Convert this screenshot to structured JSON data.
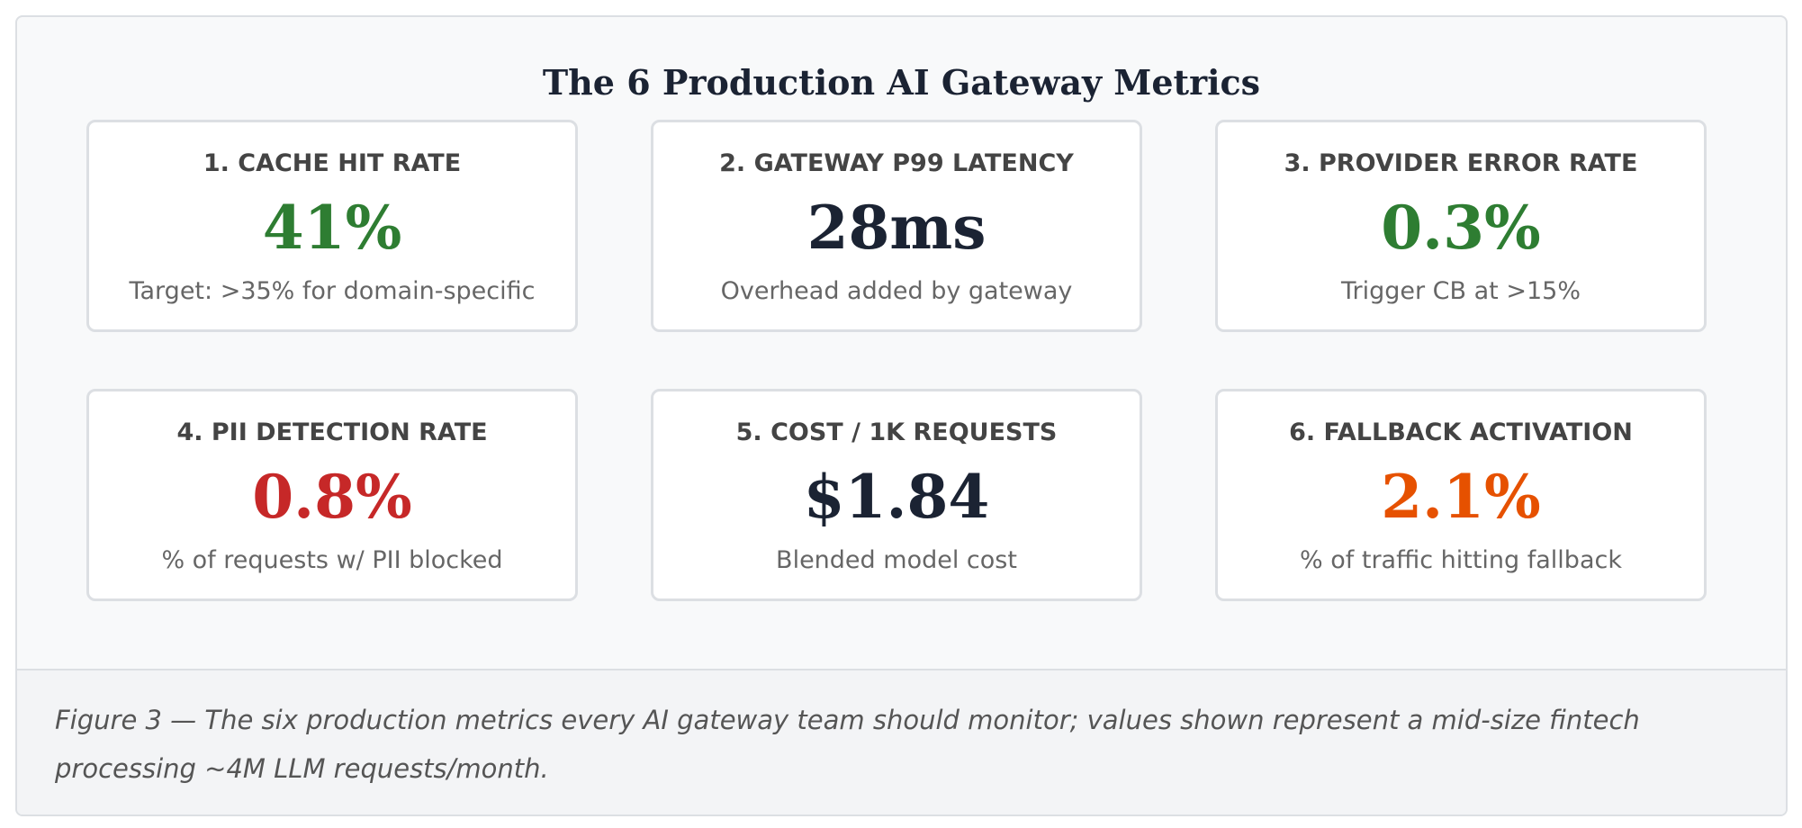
{
  "header": {
    "title": "The 6 Production AI Gateway Metrics"
  },
  "cards": [
    {
      "label": "1. CACHE HIT RATE",
      "value": "41%",
      "note": "Target: >35% for domain-specific",
      "color": "#2e7d32"
    },
    {
      "label": "2. GATEWAY P99 LATENCY",
      "value": "28ms",
      "note": "Overhead added by gateway",
      "color": "#1b2333"
    },
    {
      "label": "3. PROVIDER ERROR RATE",
      "value": "0.3%",
      "note": "Trigger CB at >15%",
      "color": "#2e7d32"
    },
    {
      "label": "4. PII DETECTION RATE",
      "value": "0.8%",
      "note": "% of requests w/ PII blocked",
      "color": "#c62828"
    },
    {
      "label": "5. COST / 1K REQUESTS",
      "value": "$1.84",
      "note": "Blended model cost",
      "color": "#1b2333"
    },
    {
      "label": "6. FALLBACK ACTIVATION",
      "value": "2.1%",
      "note": "% of traffic hitting fallback",
      "color": "#e65100"
    }
  ],
  "caption": "Figure 3 — The six production metrics every AI gateway team should monitor; values shown represent a mid-size fintech processing ~4M LLM requests/month."
}
